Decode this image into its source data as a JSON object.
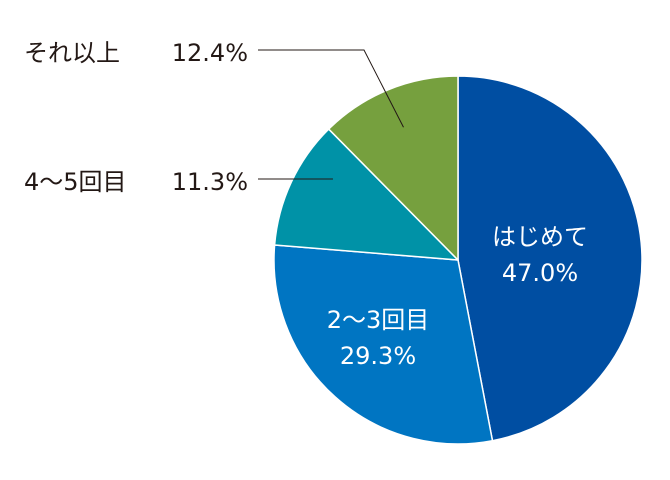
{
  "chart_data": {
    "type": "pie",
    "title": "",
    "slices": [
      {
        "label": "はじめて",
        "value": 47.0,
        "value_label": "47.0%",
        "color": "#004EA2",
        "label_style": "inside"
      },
      {
        "label": "2〜3回目",
        "value": 29.3,
        "value_label": "29.3%",
        "color": "#0075C2",
        "label_style": "inside"
      },
      {
        "label": "4〜5回目",
        "value": 11.3,
        "value_label": "11.3%",
        "color": "#0092A7",
        "label_style": "outside"
      },
      {
        "label": "それ以上",
        "value": 12.4,
        "value_label": "12.4%",
        "color": "#76A03E",
        "label_style": "outside"
      }
    ],
    "start": "12 o'clock",
    "direction": "clockwise",
    "legend": "none"
  }
}
